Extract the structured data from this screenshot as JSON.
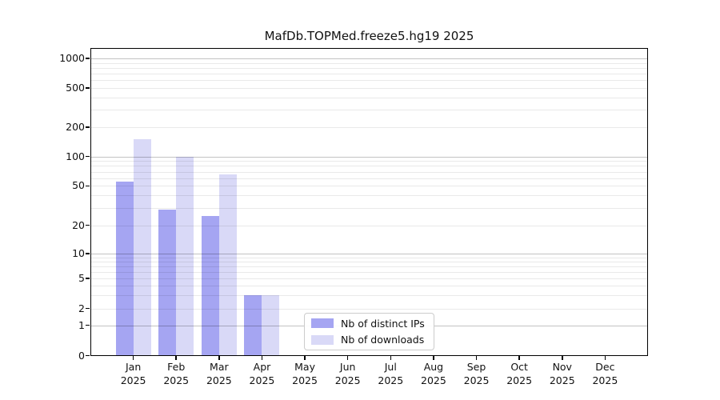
{
  "title": "MafDb.TOPMed.freeze5.hg19 2025",
  "chart_data": {
    "type": "bar",
    "title": "MafDb.TOPMed.freeze5.hg19 2025",
    "categories": [
      "Jan",
      "Feb",
      "Mar",
      "Apr",
      "May",
      "Jun",
      "Jul",
      "Aug",
      "Sep",
      "Oct",
      "Nov",
      "Dec"
    ],
    "category_year": "2025",
    "series": [
      {
        "name": "Nb of distinct IPs",
        "color": "#a5a5f2",
        "values": [
          55,
          29,
          25,
          3,
          0,
          0,
          0,
          0,
          0,
          0,
          0,
          0
        ]
      },
      {
        "name": "Nb of downloads",
        "color": "#d9d9f7",
        "values": [
          150,
          100,
          65,
          3,
          0,
          0,
          0,
          0,
          0,
          0,
          0,
          0
        ]
      }
    ],
    "y_axis": {
      "scale": "symlog",
      "tick_values": [
        0,
        1,
        2,
        5,
        10,
        20,
        50,
        100,
        200,
        500,
        1000
      ],
      "tick_labels": [
        "0",
        "1",
        "2",
        "5",
        "10",
        "20",
        "50",
        "100",
        "200",
        "500",
        "1000"
      ],
      "major_grid_values": [
        1,
        10,
        100,
        1000
      ],
      "ylim": [
        0,
        1200
      ]
    },
    "x_axis": {
      "label": "",
      "tick_label_lines": 2
    },
    "grid": true,
    "legend_position": "lower-center-inside",
    "legend_entries": [
      "Nb of distinct IPs",
      "Nb of downloads"
    ]
  }
}
